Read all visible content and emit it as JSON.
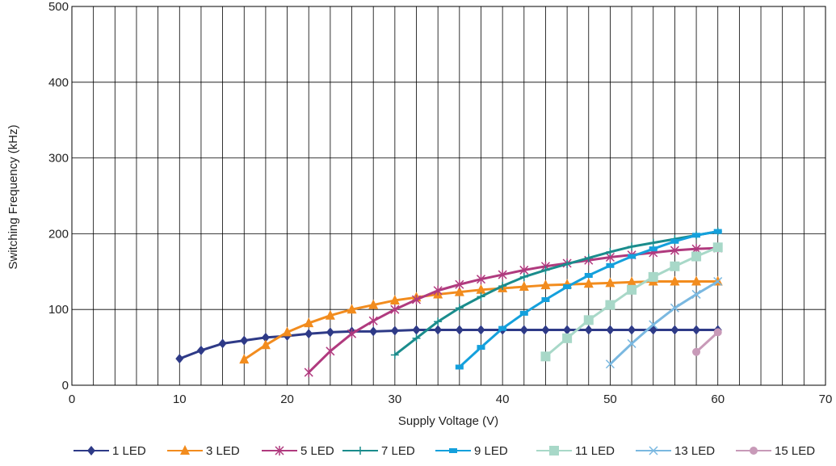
{
  "chart_data": {
    "type": "line",
    "title": "",
    "xlabel": "Supply Voltage (V)",
    "ylabel": "Switching Frequency (kHz)",
    "xlim": [
      0,
      70
    ],
    "ylim": [
      0,
      500
    ],
    "x_ticks": [
      0,
      10,
      20,
      30,
      40,
      50,
      60,
      70
    ],
    "y_ticks": [
      0,
      100,
      200,
      300,
      400,
      500
    ],
    "x_minor_step": 2,
    "grid": true,
    "legend": "bottom",
    "series": [
      {
        "name": "1 LED",
        "color": "#2e3a87",
        "marker": "diamond",
        "x": [
          10,
          12,
          14,
          16,
          18,
          20,
          22,
          24,
          26,
          28,
          30,
          32,
          34,
          36,
          38,
          40,
          42,
          44,
          46,
          48,
          50,
          52,
          54,
          56,
          58,
          60
        ],
        "y": [
          35,
          46,
          55,
          59,
          63,
          65,
          68,
          70,
          71,
          71,
          72,
          73,
          73,
          73,
          73,
          73,
          73,
          73,
          73,
          73,
          73,
          73,
          73,
          73,
          73,
          73
        ]
      },
      {
        "name": "3 LED",
        "color": "#f28c1e",
        "marker": "triangle",
        "x": [
          16,
          18,
          20,
          22,
          24,
          26,
          28,
          30,
          32,
          34,
          36,
          38,
          40,
          42,
          44,
          46,
          48,
          50,
          52,
          54,
          56,
          58,
          60
        ],
        "y": [
          34,
          53,
          70,
          82,
          92,
          100,
          106,
          112,
          116,
          120,
          123,
          126,
          128,
          130,
          132,
          133,
          134,
          135,
          136,
          137,
          137,
          137,
          137
        ]
      },
      {
        "name": "5 LED",
        "color": "#b03a7e",
        "marker": "asterisk",
        "x": [
          22,
          24,
          26,
          28,
          30,
          32,
          34,
          36,
          38,
          40,
          42,
          44,
          46,
          48,
          50,
          52,
          54,
          56,
          58,
          60
        ],
        "y": [
          17,
          45,
          68,
          85,
          100,
          113,
          125,
          133,
          140,
          146,
          152,
          157,
          161,
          165,
          169,
          172,
          175,
          178,
          180,
          181
        ]
      },
      {
        "name": "7 LED",
        "color": "#1a8c8c",
        "marker": "plus",
        "x": [
          30,
          32,
          34,
          36,
          38,
          40,
          42,
          44,
          46,
          48,
          50,
          52,
          54,
          56,
          58,
          60
        ],
        "y": [
          40,
          62,
          84,
          102,
          117,
          131,
          143,
          152,
          160,
          168,
          176,
          183,
          188,
          193,
          198,
          203
        ]
      },
      {
        "name": "9 LED",
        "color": "#14a0dc",
        "marker": "square",
        "x": [
          36,
          38,
          40,
          42,
          44,
          46,
          48,
          50,
          52,
          54,
          56,
          58,
          60
        ],
        "y": [
          24,
          50,
          75,
          95,
          113,
          130,
          145,
          158,
          170,
          180,
          190,
          198,
          203
        ]
      },
      {
        "name": "11 LED",
        "color": "#a8d8c8",
        "marker": "bigsquare",
        "x": [
          44,
          46,
          48,
          50,
          52,
          54,
          56,
          58,
          60
        ],
        "y": [
          38,
          62,
          86,
          106,
          126,
          143,
          157,
          170,
          182
        ]
      },
      {
        "name": "13 LED",
        "color": "#7ab8e0",
        "marker": "x",
        "x": [
          50,
          52,
          54,
          56,
          58,
          60
        ],
        "y": [
          28,
          55,
          80,
          102,
          120,
          137
        ]
      },
      {
        "name": "15 LED",
        "color": "#c89ab8",
        "marker": "circle",
        "x": [
          58,
          60
        ],
        "y": [
          44,
          70
        ]
      }
    ]
  }
}
